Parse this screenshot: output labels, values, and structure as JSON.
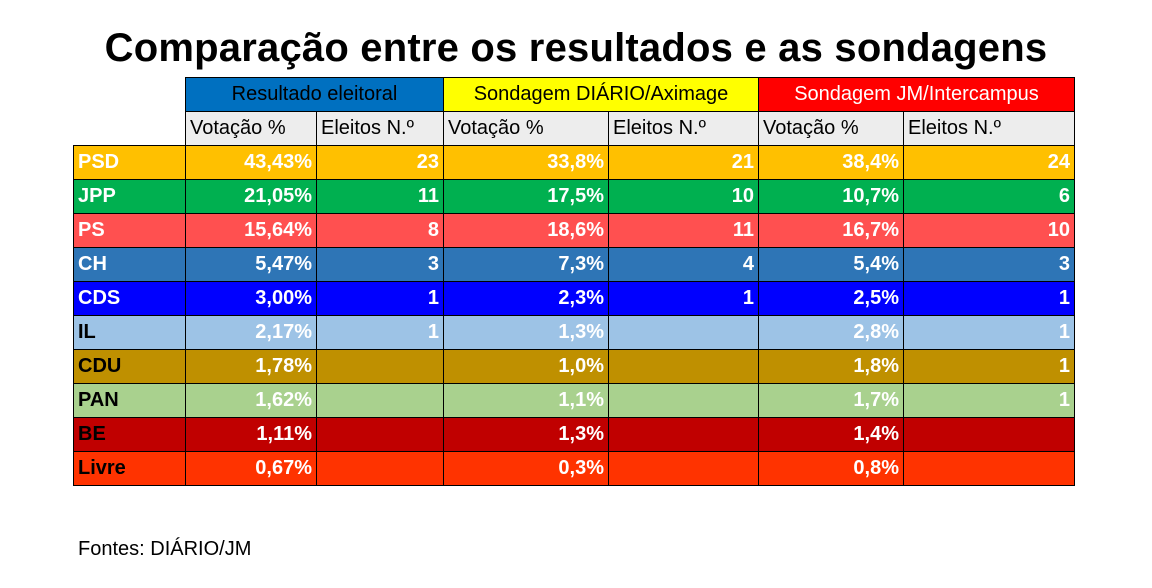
{
  "title": "Comparação entre os resultados e as sondagens",
  "groups": [
    {
      "label": "Resultado eleitoral",
      "bg": "#0070c0",
      "color": "#000000"
    },
    {
      "label": "Sondagem DIÁRIO/Aximage",
      "bg": "#ffff00",
      "color": "#000000"
    },
    {
      "label": "Sondagem JM/Intercampus",
      "bg": "#ff0000",
      "color": "#ffffff"
    }
  ],
  "subheaders": [
    "Votação %",
    "Eleitos N.º",
    "Votação %",
    "Eleitos N.º",
    "Votação %",
    "Eleitos N.º"
  ],
  "rows": [
    {
      "party": "PSD",
      "bg": "#ffc000",
      "name_color": "#ffffff",
      "color": "#ffffff",
      "cells": [
        "43,43%",
        "23",
        "33,8%",
        "21",
        "38,4%",
        "24"
      ]
    },
    {
      "party": "JPP",
      "bg": "#00b050",
      "name_color": "#ffffff",
      "color": "#ffffff",
      "cells": [
        "21,05%",
        "11",
        "17,5%",
        "10",
        "10,7%",
        "6"
      ]
    },
    {
      "party": "PS",
      "bg": "#ff5050",
      "name_color": "#ffffff",
      "color": "#ffffff",
      "cells": [
        "15,64%",
        "8",
        "18,6%",
        "11",
        "16,7%",
        "10"
      ]
    },
    {
      "party": "CH",
      "bg": "#2e75b6",
      "name_color": "#ffffff",
      "color": "#ffffff",
      "cells": [
        "5,47%",
        "3",
        "7,3%",
        "4",
        "5,4%",
        "3"
      ]
    },
    {
      "party": "CDS",
      "bg": "#0000ff",
      "name_color": "#ffffff",
      "color": "#ffffff",
      "cells": [
        "3,00%",
        "1",
        "2,3%",
        "1",
        "2,5%",
        "1"
      ]
    },
    {
      "party": "IL",
      "bg": "#9dc3e6",
      "name_color": "#000000",
      "color": "#ffffff",
      "cells": [
        "2,17%",
        "1",
        "1,3%",
        "",
        "2,8%",
        "1"
      ]
    },
    {
      "party": "CDU",
      "bg": "#bf9000",
      "name_color": "#000000",
      "color": "#ffffff",
      "cells": [
        "1,78%",
        "",
        "1,0%",
        "",
        "1,8%",
        "1"
      ]
    },
    {
      "party": "PAN",
      "bg": "#a9d18e",
      "name_color": "#000000",
      "color": "#ffffff",
      "cells": [
        "1,62%",
        "",
        "1,1%",
        "",
        "1,7%",
        "1"
      ]
    },
    {
      "party": "BE",
      "bg": "#c00000",
      "name_color": "#000000",
      "color": "#ffffff",
      "cells": [
        "1,11%",
        "",
        "1,3%",
        "",
        "1,4%",
        ""
      ]
    },
    {
      "party": "Livre",
      "bg": "#ff3300",
      "name_color": "#000000",
      "color": "#ffffff",
      "cells": [
        "0,67%",
        "",
        "0,3%",
        "",
        "0,8%",
        ""
      ]
    }
  ],
  "sources": "Fontes: DIÁRIO/JM"
}
